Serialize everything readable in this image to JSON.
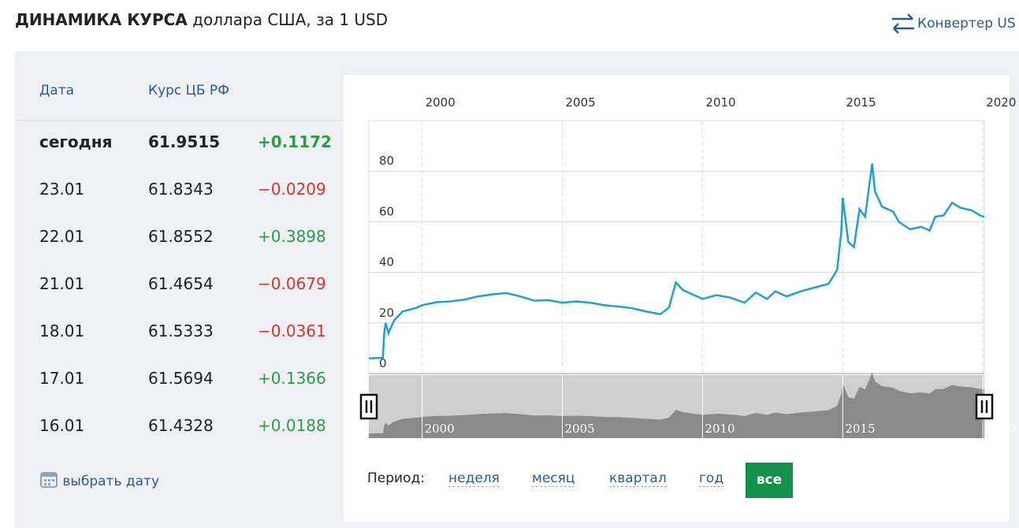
{
  "header": {
    "title": "ДИНАМИКА КУРСА",
    "subtitle": "доллара США, за 1 USD",
    "converter": "Конвертер US"
  },
  "table": {
    "columns": [
      "Дата",
      "Курс ЦБ РФ"
    ],
    "rows": [
      [
        "сегодня",
        "61.9515",
        "+0.1172"
      ],
      [
        "23.01",
        "61.8343",
        "−0.0209"
      ],
      [
        "22.01",
        "61.8552",
        "+0.3898"
      ],
      [
        "21.01",
        "61.4654",
        "−0.0679"
      ],
      [
        "18.01",
        "61.5333",
        "−0.0361"
      ],
      [
        "17.01",
        "61.5694",
        "+0.1366"
      ],
      [
        "16.01",
        "61.4328",
        "+0.0188"
      ]
    ],
    "date_picker": "выбрать дату"
  },
  "chart_data": {
    "type": "line",
    "color": "#1ba1d8",
    "grid": true,
    "x": [
      1998.1,
      1998.6,
      1998.65,
      1998.7,
      1998.8,
      1999.0,
      1999.3,
      1999.8,
      2000.0,
      2000.5,
      2001.0,
      2001.5,
      2002.0,
      2002.5,
      2003.0,
      2003.5,
      2004.0,
      2004.5,
      2005.0,
      2005.5,
      2006.0,
      2006.5,
      2007.0,
      2007.5,
      2008.0,
      2008.5,
      2008.8,
      2009.05,
      2009.3,
      2009.6,
      2010.0,
      2010.5,
      2011.0,
      2011.5,
      2011.9,
      2012.3,
      2012.6,
      2013.0,
      2013.5,
      2014.0,
      2014.5,
      2014.8,
      2014.95,
      2015.0,
      2015.2,
      2015.4,
      2015.6,
      2015.8,
      2016.05,
      2016.15,
      2016.4,
      2016.8,
      2017.0,
      2017.4,
      2017.8,
      2018.1,
      2018.3,
      2018.6,
      2018.9,
      2019.2,
      2019.6,
      2019.9,
      2020.05
    ],
    "values": [
      6,
      6.2,
      16,
      20,
      16,
      21,
      24.5,
      26,
      27,
      28.2,
      28.5,
      29.2,
      30.5,
      31.3,
      31.8,
      30.5,
      28.8,
      29,
      28,
      28.5,
      28,
      27,
      26.5,
      25.8,
      24.5,
      23.5,
      26,
      36,
      33,
      31.5,
      29.5,
      31,
      30,
      28,
      32,
      29.5,
      32.5,
      30.5,
      32.5,
      34,
      35.5,
      41,
      56,
      69.5,
      52,
      50,
      65,
      62,
      83,
      72,
      66,
      64,
      60,
      57,
      58,
      56.5,
      62,
      62.5,
      67.5,
      65.5,
      64.5,
      62.5,
      61.95
    ],
    "xlim": [
      1998.1,
      2020.05
    ],
    "xticks": [
      2000,
      2005,
      2010,
      2015,
      2020
    ],
    "ylim": [
      0,
      100
    ],
    "yticks": [
      0,
      20,
      40,
      60,
      80
    ],
    "period_label": "Период:",
    "periods": [
      "неделя",
      "месяц",
      "квартал",
      "год",
      "все"
    ]
  }
}
